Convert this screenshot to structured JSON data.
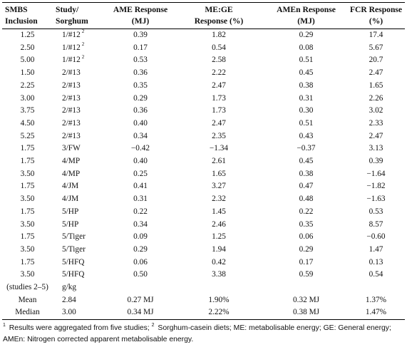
{
  "table": {
    "headers": [
      [
        "SMBS",
        "Inclusion"
      ],
      [
        "Study/",
        "Sorghum"
      ],
      [
        "AME Response",
        "(MJ)"
      ],
      [
        "ME:GE",
        "Response (%)"
      ],
      [
        "AMEn Response",
        "(MJ)"
      ],
      [
        "FCR Response",
        "(%)"
      ]
    ],
    "rows": [
      [
        "1.25",
        "1/#12",
        "0.39",
        "1.82",
        "0.29",
        "17.4"
      ],
      [
        "2.50",
        "1/#12",
        "0.17",
        "0.54",
        "0.08",
        "5.67"
      ],
      [
        "5.00",
        "1/#12",
        "0.53",
        "2.58",
        "0.51",
        "20.7"
      ],
      [
        "1.50",
        "2/#13",
        "0.36",
        "2.22",
        "0.45",
        "2.47"
      ],
      [
        "2.25",
        "2/#13",
        "0.35",
        "2.47",
        "0.38",
        "1.65"
      ],
      [
        "3.00",
        "2/#13",
        "0.29",
        "1.73",
        "0.31",
        "2.26"
      ],
      [
        "3.75",
        "2/#13",
        "0.36",
        "1.73",
        "0.30",
        "3.02"
      ],
      [
        "4.50",
        "2/#13",
        "0.40",
        "2.47",
        "0.51",
        "2.33"
      ],
      [
        "5.25",
        "2/#13",
        "0.34",
        "2.35",
        "0.43",
        "2.47"
      ],
      [
        "1.75",
        "3/FW",
        "−0.42",
        "−1.34",
        "−0.37",
        "3.13"
      ],
      [
        "1.75",
        "4/MP",
        "0.40",
        "2.61",
        "0.45",
        "0.39"
      ],
      [
        "3.50",
        "4/MP",
        "0.25",
        "1.65",
        "0.38",
        "−1.64"
      ],
      [
        "1.75",
        "4/JM",
        "0.41",
        "3.27",
        "0.47",
        "−1.82"
      ],
      [
        "3.50",
        "4/JM",
        "0.31",
        "2.32",
        "0.48",
        "−1.63"
      ],
      [
        "1.75",
        "5/HP",
        "0.22",
        "1.45",
        "0.22",
        "0.53"
      ],
      [
        "3.50",
        "5/HP",
        "0.34",
        "2.46",
        "0.35",
        "8.57"
      ],
      [
        "1.75",
        "5/Tiger",
        "0.09",
        "1.25",
        "0.06",
        "−0.60"
      ],
      [
        "3.50",
        "5/Tiger",
        "0.29",
        "1.94",
        "0.29",
        "1.47"
      ],
      [
        "1.75",
        "5/HFQ",
        "0.06",
        "0.42",
        "0.17",
        "0.13"
      ],
      [
        "3.50",
        "5/HFQ",
        "0.50",
        "3.38",
        "0.59",
        "0.54"
      ],
      [
        "(studies 2–5)",
        "g/kg",
        "",
        "",
        "",
        ""
      ],
      [
        "Mean",
        "2.84",
        "0.27 MJ",
        "1.90%",
        "0.32 MJ",
        "1.37%"
      ],
      [
        "Median",
        "3.00",
        "0.34 MJ",
        "2.22%",
        "0.38 MJ",
        "1.47%"
      ]
    ],
    "row_superscripts": [
      "2",
      "2",
      "2"
    ]
  },
  "footnote": {
    "sup1": "1",
    "text1": " Results were aggregated from five studies; ",
    "sup2": "2",
    "text2": " Sorghum-casein diets; ME: metabolisable energy; GE: General energy; AMEn: Nitrogen corrected apparent metabolisable energy."
  }
}
